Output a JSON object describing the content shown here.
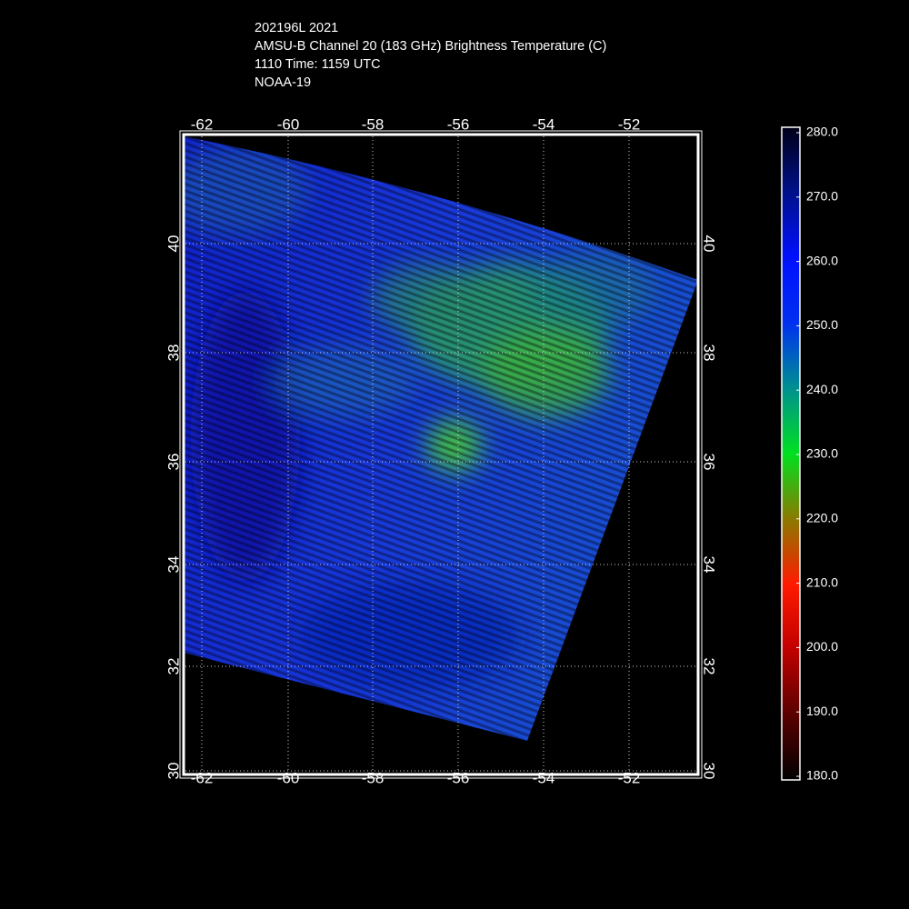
{
  "title_lines": [
    "202196L 2021",
    "AMSU-B Channel 20 (183 GHz) Brightness Temperature (C)",
    "1110 Time: 1159 UTC",
    "NOAA-19"
  ],
  "map": {
    "lon_ticks": [
      "-62",
      "-60",
      "-58",
      "-56",
      "-54",
      "-52"
    ],
    "lat_ticks": [
      "30",
      "32",
      "34",
      "36",
      "38",
      "40"
    ]
  },
  "colorbar": {
    "ticks": [
      "180.0",
      "190.0",
      "200.0",
      "210.0",
      "220.0",
      "230.0",
      "240.0",
      "250.0",
      "260.0",
      "270.0",
      "280.0"
    ]
  }
}
